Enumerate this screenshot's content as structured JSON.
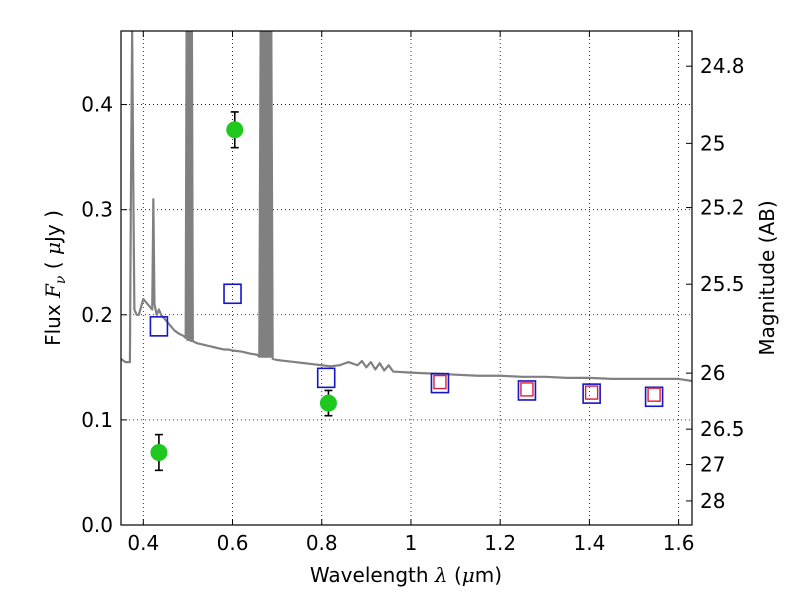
{
  "chart_data": {
    "type": "scatter",
    "xlabel": "Wavelength  λ (μm)",
    "ylabel": "Flux  Fν  ( μJy )",
    "y2label": "Magnitude (AB)",
    "xlim": [
      0.35,
      1.63
    ],
    "ylim": [
      0.0,
      0.47
    ],
    "x_ticks": [
      0.4,
      0.6,
      0.8,
      1,
      1.2,
      1.4,
      1.6
    ],
    "x_tick_labels": [
      "0.4",
      "0.6",
      "0.8",
      "1",
      "1.2",
      "1.4",
      "1.6"
    ],
    "y_ticks": [
      0.0,
      0.1,
      0.2,
      0.3,
      0.4
    ],
    "y_tick_labels": [
      "0.0",
      "0.1",
      "0.2",
      "0.3",
      "0.4"
    ],
    "y2_ticks": [
      {
        "flux": 0.4365,
        "label": "24.8"
      },
      {
        "flux": 0.3631,
        "label": "25"
      },
      {
        "flux": 0.302,
        "label": "25.2"
      },
      {
        "flux": 0.2291,
        "label": "25.5"
      },
      {
        "flux": 0.1445,
        "label": "26"
      },
      {
        "flux": 0.0912,
        "label": "26.5"
      },
      {
        "flux": 0.0575,
        "label": "27"
      },
      {
        "flux": 0.0229,
        "label": "28"
      }
    ],
    "grid": true,
    "colors": {
      "spectrum": "#808080",
      "observed": "#1ec81e",
      "model_blue": "#1414c8",
      "model_red": "#dc1e3c"
    },
    "series": [
      {
        "kind": "spectrum",
        "x": [
          0.35,
          0.36,
          0.37,
          0.372,
          0.375,
          0.378,
          0.38,
          0.385,
          0.39,
          0.4,
          0.41,
          0.42,
          0.4225,
          0.425,
          0.43,
          0.435,
          0.44,
          0.45,
          0.46,
          0.47,
          0.48,
          0.49,
          0.495,
          0.497,
          0.499,
          0.501,
          0.503,
          0.505,
          0.507,
          0.509,
          0.511,
          0.515,
          0.52,
          0.53,
          0.54,
          0.55,
          0.56,
          0.57,
          0.58,
          0.59,
          0.6,
          0.62,
          0.64,
          0.655,
          0.66,
          0.663,
          0.665,
          0.667,
          0.669,
          0.671,
          0.673,
          0.675,
          0.677,
          0.679,
          0.681,
          0.683,
          0.685,
          0.687,
          0.69,
          0.7,
          0.72,
          0.74,
          0.76,
          0.78,
          0.8,
          0.82,
          0.84,
          0.86,
          0.88,
          0.89,
          0.9,
          0.91,
          0.92,
          0.93,
          0.94,
          0.95,
          0.96,
          1.0,
          1.05,
          1.1,
          1.15,
          1.2,
          1.25,
          1.3,
          1.35,
          1.4,
          1.45,
          1.5,
          1.55,
          1.6,
          1.63
        ],
        "y": [
          0.158,
          0.155,
          0.155,
          0.3,
          0.47,
          0.3,
          0.205,
          0.2,
          0.2,
          0.215,
          0.21,
          0.205,
          0.31,
          0.21,
          0.2,
          0.205,
          0.2,
          0.195,
          0.19,
          0.185,
          0.182,
          0.18,
          0.178,
          0.47,
          0.176,
          0.47,
          0.176,
          0.47,
          0.175,
          0.47,
          0.175,
          0.174,
          0.173,
          0.172,
          0.171,
          0.17,
          0.169,
          0.168,
          0.167,
          0.167,
          0.166,
          0.165,
          0.163,
          0.162,
          0.16,
          0.47,
          0.16,
          0.47,
          0.16,
          0.47,
          0.16,
          0.47,
          0.16,
          0.47,
          0.16,
          0.47,
          0.16,
          0.47,
          0.158,
          0.157,
          0.156,
          0.155,
          0.154,
          0.153,
          0.152,
          0.151,
          0.152,
          0.155,
          0.152,
          0.156,
          0.15,
          0.155,
          0.148,
          0.154,
          0.147,
          0.152,
          0.146,
          0.145,
          0.144,
          0.143,
          0.142,
          0.142,
          0.141,
          0.141,
          0.14,
          0.14,
          0.139,
          0.139,
          0.139,
          0.139,
          0.137
        ]
      },
      {
        "kind": "observed",
        "marker": "circle",
        "x": [
          0.435,
          0.605,
          0.815
        ],
        "y": [
          0.069,
          0.376,
          0.116
        ],
        "yerr": [
          0.017,
          0.017,
          0.012
        ]
      },
      {
        "kind": "model_blue",
        "marker": "open-square",
        "x": [
          0.435,
          0.6,
          0.81,
          1.065,
          1.26,
          1.405,
          1.545
        ],
        "y": [
          0.189,
          0.22,
          0.14,
          0.135,
          0.128,
          0.125,
          0.122
        ]
      },
      {
        "kind": "model_red",
        "marker": "open-square",
        "x": [
          1.065,
          1.26,
          1.405,
          1.545
        ],
        "y": [
          0.136,
          0.129,
          0.126,
          0.124
        ]
      }
    ]
  }
}
